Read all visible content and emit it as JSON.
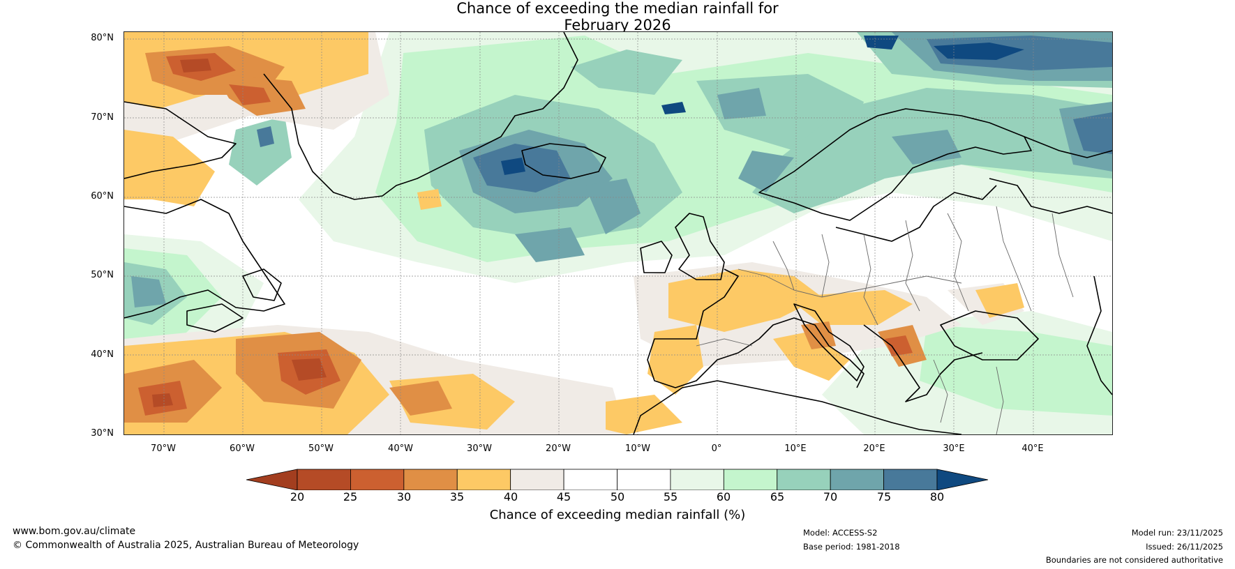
{
  "title": {
    "line1": "Chance of exceeding the median rainfall for",
    "line2": "February 2026"
  },
  "map": {
    "lat_labels": [
      "80°N",
      "70°N",
      "60°N",
      "50°N",
      "40°N",
      "30°N"
    ],
    "lon_labels": [
      "70°W",
      "60°W",
      "50°W",
      "40°W",
      "30°W",
      "20°W",
      "10°W",
      "0°",
      "10°E",
      "20°E",
      "30°E",
      "40°E"
    ],
    "extent": {
      "lon_min": -75,
      "lon_max": 50,
      "lat_min": 30,
      "lat_max": 81
    }
  },
  "colorbar": {
    "ticks": [
      "20",
      "25",
      "30",
      "35",
      "40",
      "45",
      "50",
      "55",
      "60",
      "65",
      "70",
      "75",
      "80"
    ],
    "colors": [
      "#a33e1f",
      "#b54b26",
      "#cc6030",
      "#e08f45",
      "#fdc965",
      "#f0ebe6",
      "#ffffff",
      "#ffffff",
      "#e8f7e8",
      "#c4f5cd",
      "#97d1bb",
      "#6fa5ab",
      "#48799a",
      "#0f4980"
    ],
    "label": "Chance of exceeding median rainfall (%)"
  },
  "footer": {
    "website": "www.bom.gov.au/climate",
    "copyright": "© Commonwealth of Australia 2025, Australian Bureau of Meteorology",
    "model": "Model: ACCESS-S2",
    "base_period": "Base period: 1981-2018",
    "model_run": "Model run: 23/11/2025",
    "issued": "Issued: 26/11/2025",
    "disclaimer": "Boundaries are not considered authoritative"
  }
}
